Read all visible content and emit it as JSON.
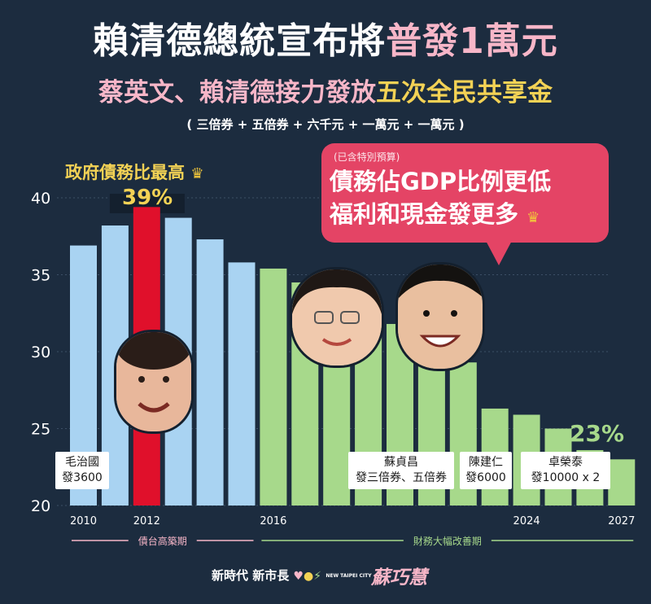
{
  "header": {
    "title_main": "賴清德總統宣布將",
    "title_highlight": "普發1萬元",
    "subtitle_main": "蔡英文、賴清德接力發放",
    "subtitle_highlight": "五次全民共享金",
    "items": "( 三倍券 + 五倍券 + 六千元 + 一萬元 + 一萬元 )"
  },
  "callout": {
    "note": "(已含特別預算)",
    "line1": "債務佔GDP比例更低",
    "line2": "福利和現金發更多"
  },
  "chart_data": {
    "type": "bar",
    "x": [
      2010,
      2011,
      2012,
      2013,
      2014,
      2015,
      2016,
      2017,
      2018,
      2019,
      2020,
      2021,
      2022,
      2023,
      2024,
      2025,
      2026,
      2027
    ],
    "values": [
      36.9,
      38.2,
      39.4,
      38.7,
      37.3,
      35.8,
      35.4,
      34.5,
      33.2,
      32.2,
      31.8,
      30.7,
      29.3,
      26.3,
      25.9,
      25.0,
      23.6,
      23.0
    ],
    "colors": [
      "#a9d3f2",
      "#a9d3f2",
      "#e0102b",
      "#a9d3f2",
      "#a9d3f2",
      "#a9d3f2",
      "#a7d98b",
      "#a7d98b",
      "#a7d98b",
      "#a7d98b",
      "#a7d98b",
      "#a7d98b",
      "#a7d98b",
      "#a7d98b",
      "#a7d98b",
      "#a7d98b",
      "#a7d98b",
      "#a7d98b"
    ],
    "ylim": [
      20,
      40
    ],
    "yticks": [
      20,
      25,
      30,
      35,
      40
    ],
    "xtick_labels": [
      {
        "x": 2010,
        "label": "2010"
      },
      {
        "x": 2012,
        "label": "2012"
      },
      {
        "x": 2016,
        "label": "2016"
      },
      {
        "x": 2024,
        "label": "2024"
      },
      {
        "x": 2027,
        "label": "2027"
      }
    ],
    "peak_label": "政府債務比最高",
    "peak_value": "39%",
    "end_value": "23%",
    "grid": true
  },
  "periods": [
    {
      "label": "債台高築期",
      "color": "#f7b6c8",
      "from": 2010,
      "to": 2015
    },
    {
      "label": "財務大幅改善期",
      "color": "#a7d98b",
      "from": 2016,
      "to": 2027
    }
  ],
  "annotations": [
    {
      "line1": "毛治國",
      "line2": "發3600"
    },
    {
      "line1": "蘇貞昌",
      "line2": "發三倍券、五倍券"
    },
    {
      "line1": "陳建仁",
      "line2": "發6000"
    },
    {
      "line1": "卓榮泰",
      "line2": "發10000 x 2"
    }
  ],
  "footer": {
    "slogan": "新時代 新市長",
    "city_tag": "NEW TAIPEI CITY",
    "name": "蘇巧慧"
  }
}
